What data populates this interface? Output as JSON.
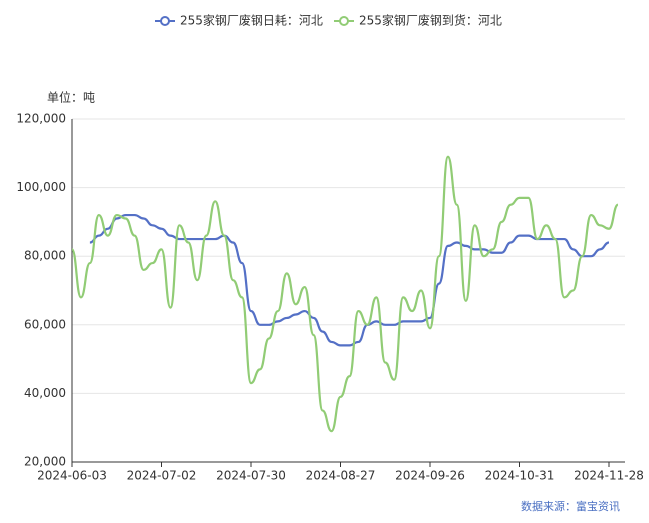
{
  "chart_data": {
    "type": "line",
    "unit_label": "单位：吨",
    "source": "数据来源：富宝资讯",
    "categories": [
      "2024-06-03",
      null,
      null,
      null,
      null,
      null,
      null,
      null,
      null,
      null,
      "2024-07-02",
      null,
      null,
      null,
      null,
      null,
      null,
      null,
      null,
      null,
      "2024-07-30",
      null,
      null,
      null,
      null,
      null,
      null,
      null,
      null,
      null,
      "2024-08-27",
      null,
      null,
      null,
      null,
      null,
      null,
      null,
      null,
      null,
      "2024-09-26",
      null,
      null,
      null,
      null,
      null,
      null,
      null,
      null,
      null,
      "2024-10-31",
      null,
      null,
      null,
      null,
      null,
      null,
      null,
      null,
      null,
      "2024-11-28",
      null
    ],
    "series": [
      {
        "name": "255家钢厂废钢日耗：河北",
        "color": "#5470c6",
        "values": [
          null,
          null,
          84000,
          86000,
          88000,
          91000,
          92000,
          92000,
          91000,
          89000,
          88000,
          86000,
          85000,
          85000,
          85000,
          85000,
          85000,
          86000,
          84000,
          78000,
          64000,
          60000,
          60000,
          61000,
          62000,
          63000,
          64000,
          62000,
          58000,
          55000,
          54000,
          54000,
          55000,
          60000,
          61000,
          60000,
          60000,
          61000,
          61000,
          61000,
          62000,
          72000,
          83000,
          84000,
          83000,
          82000,
          82000,
          81000,
          81000,
          84000,
          86000,
          86000,
          85000,
          85000,
          85000,
          85000,
          82000,
          80000,
          80000,
          82000,
          84000,
          null
        ]
      },
      {
        "name": "255家钢厂废钢到货：河北",
        "color": "#91cc75",
        "values": [
          82000,
          68000,
          78000,
          92000,
          86000,
          92000,
          91000,
          86000,
          76000,
          78000,
          82000,
          65000,
          89000,
          84000,
          73000,
          86000,
          96000,
          86000,
          73000,
          68000,
          43000,
          47000,
          56000,
          64000,
          75000,
          66000,
          71000,
          57000,
          35000,
          29000,
          39000,
          45000,
          64000,
          60000,
          68000,
          49000,
          44000,
          68000,
          64000,
          70000,
          59000,
          80000,
          109000,
          95000,
          67000,
          89000,
          80000,
          82000,
          90000,
          95000,
          97000,
          97000,
          85000,
          89000,
          85000,
          68000,
          70000,
          80000,
          92000,
          89000,
          88000,
          95000
        ]
      }
    ],
    "ylim": [
      20000,
      120000
    ],
    "yticks": [
      {
        "value": 20000,
        "label": "20,000"
      },
      {
        "value": 40000,
        "label": "40,000"
      },
      {
        "value": 60000,
        "label": "60,000"
      },
      {
        "value": 80000,
        "label": "80,000"
      },
      {
        "value": 100000,
        "label": "100,000"
      },
      {
        "value": 120000,
        "label": "120,000"
      }
    ],
    "grid": true
  }
}
